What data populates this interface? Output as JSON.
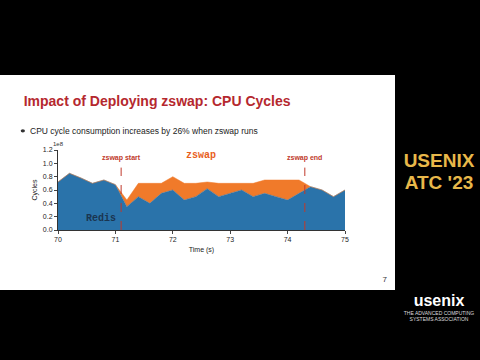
{
  "chart_data": {
    "type": "area",
    "stacked": true,
    "title": "Impact of Deploying zswap: CPU Cycles",
    "subtitle": "CPU cycle consumption increases by 26% when zswap runs",
    "x_label": "Time (s)",
    "y_label": "Cycles",
    "x": [
      70,
      70.2,
      70.4,
      70.6,
      70.8,
      71.0,
      71.2,
      71.4,
      71.6,
      71.8,
      72.0,
      72.2,
      72.4,
      72.6,
      72.8,
      73.0,
      73.2,
      73.4,
      73.6,
      73.8,
      74.0,
      74.2,
      74.4,
      74.6,
      74.8,
      75.0
    ],
    "series": [
      {
        "name": "Redis",
        "color": "#2a73aa",
        "values": [
          0.72,
          0.85,
          0.78,
          0.7,
          0.75,
          0.68,
          0.35,
          0.5,
          0.4,
          0.55,
          0.6,
          0.45,
          0.5,
          0.62,
          0.5,
          0.55,
          0.6,
          0.5,
          0.55,
          0.5,
          0.45,
          0.55,
          0.65,
          0.6,
          0.5,
          0.6
        ]
      },
      {
        "name": "zswap",
        "color": "#f07a2a",
        "values": [
          null,
          null,
          null,
          null,
          null,
          null,
          0.1,
          0.2,
          0.3,
          0.15,
          0.2,
          0.25,
          0.2,
          0.1,
          0.2,
          0.15,
          0.1,
          0.2,
          0.2,
          0.25,
          0.3,
          0.2,
          null,
          null,
          null,
          null
        ]
      }
    ],
    "xlim": [
      70,
      75
    ],
    "xticks": [
      70,
      71,
      72,
      73,
      74,
      75
    ],
    "ylim": [
      0,
      1.2
    ],
    "yticks": [
      {
        "value": 0,
        "label": "0.0"
      },
      {
        "value": 0.2,
        "label": "0.2"
      },
      {
        "value": 0.4,
        "label": "0.4"
      },
      {
        "value": 0.6,
        "label": "0.6"
      },
      {
        "value": 0.8,
        "label": "0.8"
      },
      {
        "value": 1.0,
        "label": "1.0"
      },
      {
        "value": 1.2,
        "label": "1.2"
      }
    ],
    "y_scale_label": "1e8",
    "grid": false,
    "markers": [
      {
        "x": 71.1,
        "label": "zswap start"
      },
      {
        "x": 74.3,
        "label": "zswap end"
      }
    ],
    "annotations": [
      {
        "text": "zswap",
        "x": 72.2,
        "y": 1.0,
        "color": "#e8601c"
      },
      {
        "text": "Redis",
        "x": 70.45,
        "y": 0.06,
        "color": "#1a3550"
      }
    ],
    "page_number": "7",
    "event": [
      "USENIX",
      "ATC '23"
    ],
    "logo": "usenix",
    "logo_subtitle": "THE ADVANCED COMPUTING SYSTEMS ASSOCIATION"
  }
}
